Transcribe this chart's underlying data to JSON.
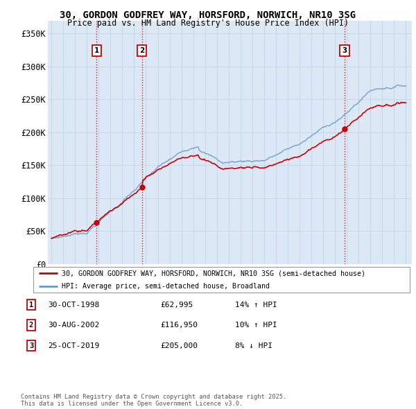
{
  "title_line1": "30, GORDON GODFREY WAY, HORSFORD, NORWICH, NR10 3SG",
  "title_line2": "Price paid vs. HM Land Registry's House Price Index (HPI)",
  "ylim": [
    0,
    370000
  ],
  "yticks": [
    0,
    50000,
    100000,
    150000,
    200000,
    250000,
    300000,
    350000
  ],
  "ytick_labels": [
    "£0",
    "£50K",
    "£100K",
    "£150K",
    "£200K",
    "£250K",
    "£300K",
    "£350K"
  ],
  "xlim_start": 1994.7,
  "xlim_end": 2025.5,
  "sale_dates": [
    1998.83,
    2002.66,
    2019.81
  ],
  "sale_prices": [
    62995,
    116950,
    205000
  ],
  "sale_labels": [
    "1",
    "2",
    "3"
  ],
  "vline_color": "#cc0000",
  "red_line_color": "#cc0000",
  "blue_line_color": "#6699cc",
  "chart_bg_color": "#dce8f5",
  "legend_label_red": "30, GORDON GODFREY WAY, HORSFORD, NORWICH, NR10 3SG (semi-detached house)",
  "legend_label_blue": "HPI: Average price, semi-detached house, Broadland",
  "table_rows": [
    [
      "1",
      "30-OCT-1998",
      "£62,995",
      "14% ↑ HPI"
    ],
    [
      "2",
      "30-AUG-2002",
      "£116,950",
      "10% ↑ HPI"
    ],
    [
      "3",
      "25-OCT-2019",
      "£205,000",
      "8% ↓ HPI"
    ]
  ],
  "footnote": "Contains HM Land Registry data © Crown copyright and database right 2025.\nThis data is licensed under the Open Government Licence v3.0.",
  "background_color": "#ffffff",
  "grid_color": "#c8d8e8"
}
